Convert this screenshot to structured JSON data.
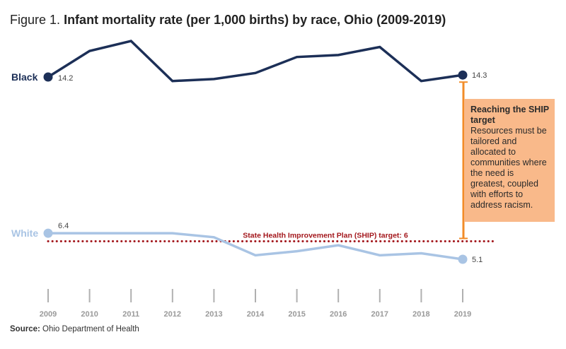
{
  "title": {
    "figure": "Figure 1.",
    "main": "Infant mortality rate (per 1,000 births) by race, Ohio (2009-2019)"
  },
  "callout": {
    "heading": "Reaching the SHIP target",
    "body": "Resources must be tailored and allocated to communities where the need is greatest, coupled with efforts to address racism."
  },
  "source": {
    "label": "Source:",
    "text": "Ohio Department of Health"
  },
  "colors": {
    "black": "#1c2f57",
    "white": "#a9c4e4",
    "target": "#a3171c",
    "callout": "#f9b98a",
    "bracket": "#f28c28",
    "axis": "#b0b0b0"
  },
  "chart_data": {
    "type": "line",
    "title": "Infant mortality rate (per 1,000 births) by race, Ohio (2009-2019)",
    "xlabel": "",
    "ylabel": "",
    "x": [
      "2009",
      "2010",
      "2011",
      "2012",
      "2013",
      "2014",
      "2015",
      "2016",
      "2017",
      "2018",
      "2019"
    ],
    "ylim": [
      4.5,
      16
    ],
    "series": [
      {
        "name": "Black",
        "values": [
          14.2,
          15.5,
          16.0,
          14.0,
          14.1,
          14.4,
          15.2,
          15.3,
          15.7,
          14.0,
          14.3
        ]
      },
      {
        "name": "White",
        "values": [
          6.4,
          6.4,
          6.4,
          6.4,
          6.2,
          5.3,
          5.5,
          5.8,
          5.3,
          5.4,
          5.1
        ]
      }
    ],
    "end_labels": {
      "Black_start": "14.2",
      "Black_end": "14.3",
      "White_start": "6.4",
      "White_end": "5.1"
    },
    "reference_line": {
      "value": 6,
      "label": "State Health Improvement Plan (SHIP) target: 6"
    },
    "bracket": {
      "x": "2019",
      "from": 14.3,
      "to": 6
    }
  }
}
